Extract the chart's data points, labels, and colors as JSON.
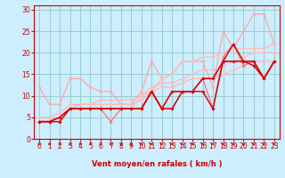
{
  "xlabel": "Vent moyen/en rafales ( km/h )",
  "bg_color": "#cceeff",
  "grid_color": "#99cccc",
  "xlim": [
    -0.5,
    23.5
  ],
  "ylim": [
    0,
    31
  ],
  "xticks": [
    0,
    1,
    2,
    3,
    4,
    5,
    6,
    7,
    8,
    9,
    10,
    11,
    12,
    13,
    14,
    15,
    16,
    17,
    18,
    19,
    20,
    21,
    22,
    23
  ],
  "yticks": [
    0,
    5,
    10,
    15,
    20,
    25,
    30
  ],
  "lines": [
    {
      "x": [
        0,
        1,
        2,
        3,
        4,
        5,
        6,
        7,
        8,
        9,
        10,
        11,
        12,
        13,
        14,
        15,
        16,
        17,
        18,
        19,
        20,
        21,
        22,
        23
      ],
      "y": [
        12,
        8,
        8,
        14,
        14,
        12,
        11,
        11,
        8,
        8,
        11,
        18,
        14,
        15,
        18,
        18,
        18,
        12,
        25,
        21,
        25,
        29,
        29,
        22
      ],
      "color": "#ffaaaa",
      "lw": 1.0,
      "ms": 2.0
    },
    {
      "x": [
        0,
        1,
        2,
        3,
        4,
        5,
        6,
        7,
        8,
        9,
        10,
        11,
        12,
        13,
        14,
        15,
        16,
        17,
        18,
        19,
        20,
        21,
        22,
        23
      ],
      "y": [
        4,
        4,
        4,
        7,
        7,
        7,
        7,
        7,
        7,
        7,
        10,
        11,
        14,
        15,
        18,
        18,
        19,
        19,
        20,
        21,
        21,
        21,
        21,
        22
      ],
      "color": "#ffbbbb",
      "lw": 1.0,
      "ms": 2.0
    },
    {
      "x": [
        0,
        1,
        2,
        3,
        4,
        5,
        6,
        7,
        8,
        9,
        10,
        11,
        12,
        13,
        14,
        15,
        16,
        17,
        18,
        19,
        20,
        21,
        22,
        23
      ],
      "y": [
        5,
        5,
        6,
        8,
        8,
        8,
        9,
        9,
        9,
        9,
        10,
        12,
        13,
        13,
        14,
        15,
        16,
        16,
        17,
        18,
        19,
        20,
        20,
        20
      ],
      "color": "#ffbbbb",
      "lw": 1.0,
      "ms": 2.0
    },
    {
      "x": [
        0,
        1,
        2,
        3,
        4,
        5,
        6,
        7,
        8,
        9,
        10,
        11,
        12,
        13,
        14,
        15,
        16,
        17,
        18,
        19,
        20,
        21,
        22,
        23
      ],
      "y": [
        4,
        4,
        5,
        7,
        8,
        8,
        8,
        8,
        8,
        8,
        9,
        11,
        12,
        12,
        13,
        14,
        14,
        14,
        15,
        16,
        17,
        18,
        18,
        18
      ],
      "color": "#ffbbbb",
      "lw": 1.0,
      "ms": 2.0
    },
    {
      "x": [
        0,
        1,
        2,
        3,
        4,
        5,
        6,
        7,
        8,
        9,
        10,
        11,
        12,
        13,
        14,
        15,
        16,
        17,
        18,
        19,
        20,
        21,
        22,
        23
      ],
      "y": [
        4,
        4,
        5,
        7,
        7,
        7,
        7,
        4,
        7,
        7,
        7,
        11,
        7,
        7,
        11,
        11,
        14,
        7,
        19,
        22,
        17,
        18,
        14,
        18
      ],
      "color": "#ff7777",
      "lw": 1.0,
      "ms": 2.0
    },
    {
      "x": [
        0,
        1,
        2,
        3,
        4,
        5,
        6,
        7,
        8,
        9,
        10,
        11,
        12,
        13,
        14,
        15,
        16,
        17,
        18,
        19,
        20,
        21,
        22,
        23
      ],
      "y": [
        4,
        4,
        4,
        7,
        7,
        7,
        7,
        7,
        7,
        7,
        7,
        11,
        7,
        7,
        11,
        11,
        11,
        7,
        18,
        22,
        18,
        17,
        14,
        18
      ],
      "color": "#cc0000",
      "lw": 1.0,
      "ms": 2.0
    },
    {
      "x": [
        0,
        1,
        2,
        3,
        4,
        5,
        6,
        7,
        8,
        9,
        10,
        11,
        12,
        13,
        14,
        15,
        16,
        17,
        18,
        19,
        20,
        21,
        22,
        23
      ],
      "y": [
        4,
        4,
        5,
        7,
        7,
        7,
        7,
        7,
        7,
        7,
        7,
        11,
        7,
        11,
        11,
        11,
        14,
        14,
        18,
        18,
        18,
        18,
        14,
        18
      ],
      "color": "#dd0000",
      "lw": 1.2,
      "ms": 2.0
    }
  ],
  "arrow_angles": [
    225,
    225,
    225,
    225,
    225,
    225,
    225,
    270,
    270,
    270,
    180,
    180,
    180,
    180,
    180,
    180,
    180,
    180,
    180,
    180,
    180,
    180,
    180,
    180
  ],
  "arrow_color": "#cc0000",
  "xlabel_color": "#cc0000",
  "tick_color": "#cc0000",
  "tick_fontsize": 5.5,
  "xlabel_fontsize": 6.0,
  "spine_color": "#cc0000"
}
